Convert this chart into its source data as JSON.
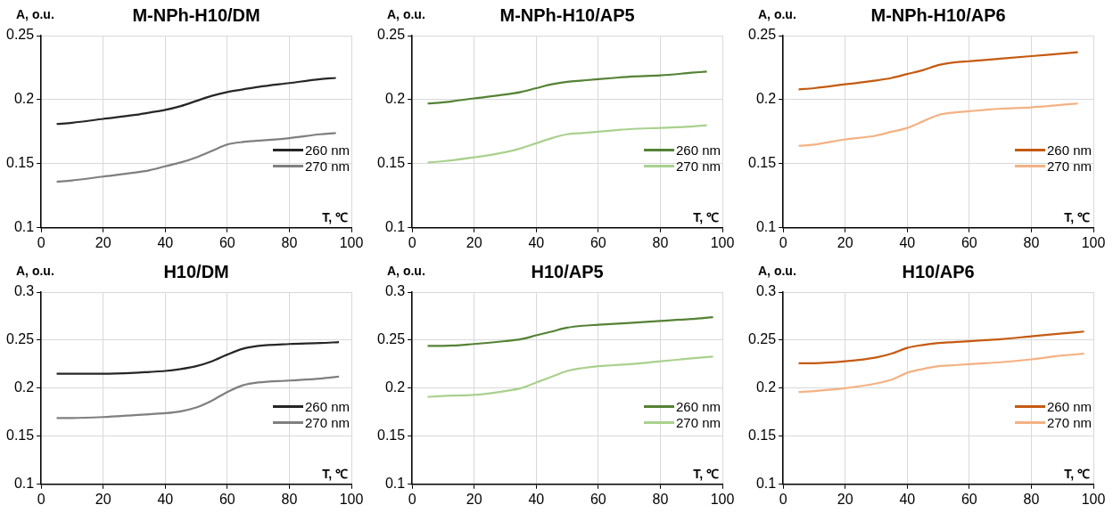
{
  "chart_data": [
    {
      "type": "line",
      "title": "M-NPh-H10/DM",
      "xlabel": "T, ℃",
      "ylabel": "A, o.u.",
      "x": [
        5,
        10,
        20,
        30,
        35,
        40,
        45,
        50,
        55,
        60,
        65,
        70,
        80,
        90,
        95
      ],
      "xlim": [
        0,
        100
      ],
      "xticks": [
        0,
        20,
        40,
        60,
        80,
        100
      ],
      "ylim": [
        0.1,
        0.25
      ],
      "yticks": [
        0.1,
        0.15,
        0.2,
        0.25
      ],
      "grid": true,
      "legend": "right",
      "marker": "none",
      "series": [
        {
          "name": "260 nm",
          "color": "#262626",
          "values": [
            0.181,
            0.182,
            0.185,
            0.188,
            0.19,
            0.192,
            0.195,
            0.199,
            0.203,
            0.206,
            0.208,
            0.21,
            0.213,
            0.216,
            0.217
          ]
        },
        {
          "name": "270 nm",
          "color": "#7f7f7f",
          "values": [
            0.136,
            0.137,
            0.14,
            0.143,
            0.145,
            0.148,
            0.151,
            0.155,
            0.16,
            0.165,
            0.167,
            0.168,
            0.17,
            0.173,
            0.174
          ]
        }
      ]
    },
    {
      "type": "line",
      "title": "M-NPh-H10/AP5",
      "xlabel": "T, ℃",
      "ylabel": "A, o.u.",
      "x": [
        5,
        10,
        20,
        30,
        35,
        40,
        45,
        50,
        55,
        60,
        65,
        70,
        80,
        90,
        95
      ],
      "xlim": [
        0,
        100
      ],
      "xticks": [
        0,
        20,
        40,
        60,
        80,
        100
      ],
      "ylim": [
        0.1,
        0.25
      ],
      "yticks": [
        0.1,
        0.15,
        0.2,
        0.25
      ],
      "grid": true,
      "legend": "right",
      "marker": "none",
      "series": [
        {
          "name": "260 nm",
          "color": "#548235",
          "values": [
            0.197,
            0.198,
            0.201,
            0.204,
            0.206,
            0.209,
            0.212,
            0.214,
            0.215,
            0.216,
            0.217,
            0.218,
            0.219,
            0.221,
            0.222
          ]
        },
        {
          "name": "270 nm",
          "color": "#a9d18e",
          "values": [
            0.151,
            0.152,
            0.155,
            0.159,
            0.162,
            0.166,
            0.17,
            0.173,
            0.174,
            0.175,
            0.176,
            0.177,
            0.178,
            0.179,
            0.18
          ]
        }
      ]
    },
    {
      "type": "line",
      "title": "M-NPh-H10/AP6",
      "xlabel": "T, ℃",
      "ylabel": "A, o.u.",
      "x": [
        5,
        10,
        20,
        30,
        35,
        40,
        45,
        50,
        55,
        60,
        65,
        70,
        80,
        90,
        95
      ],
      "xlim": [
        0,
        100
      ],
      "xticks": [
        0,
        20,
        40,
        60,
        80,
        100
      ],
      "ylim": [
        0.1,
        0.25
      ],
      "yticks": [
        0.1,
        0.15,
        0.2,
        0.25
      ],
      "grid": true,
      "legend": "right",
      "marker": "none",
      "series": [
        {
          "name": "260 nm",
          "color": "#c55a11",
          "values": [
            0.208,
            0.209,
            0.212,
            0.215,
            0.217,
            0.22,
            0.223,
            0.227,
            0.229,
            0.23,
            0.231,
            0.232,
            0.234,
            0.236,
            0.237
          ]
        },
        {
          "name": "270 nm",
          "color": "#f4b183",
          "values": [
            0.164,
            0.165,
            0.169,
            0.172,
            0.175,
            0.178,
            0.183,
            0.188,
            0.19,
            0.191,
            0.192,
            0.193,
            0.194,
            0.196,
            0.197
          ]
        }
      ]
    },
    {
      "type": "line",
      "title": "H10/DM",
      "xlabel": "T, ℃",
      "ylabel": "A, o.u.",
      "x": [
        5,
        10,
        20,
        30,
        35,
        40,
        45,
        50,
        55,
        60,
        65,
        70,
        80,
        90,
        96
      ],
      "xlim": [
        0,
        100
      ],
      "xticks": [
        0,
        20,
        40,
        60,
        80,
        100
      ],
      "ylim": [
        0.1,
        0.3
      ],
      "yticks": [
        0.1,
        0.15,
        0.2,
        0.25,
        0.3
      ],
      "grid": true,
      "legend": "right",
      "marker": "none",
      "series": [
        {
          "name": "260 nm",
          "color": "#262626",
          "values": [
            0.215,
            0.215,
            0.215,
            0.216,
            0.217,
            0.218,
            0.22,
            0.223,
            0.228,
            0.235,
            0.241,
            0.244,
            0.246,
            0.247,
            0.248
          ]
        },
        {
          "name": "270 nm",
          "color": "#7f7f7f",
          "values": [
            0.169,
            0.169,
            0.17,
            0.172,
            0.173,
            0.174,
            0.176,
            0.18,
            0.187,
            0.196,
            0.203,
            0.206,
            0.208,
            0.21,
            0.212
          ]
        }
      ]
    },
    {
      "type": "line",
      "title": "H10/AP5",
      "xlabel": "T, ℃",
      "ylabel": "A, o.u.",
      "x": [
        5,
        10,
        20,
        30,
        35,
        40,
        45,
        50,
        55,
        60,
        65,
        70,
        80,
        90,
        97
      ],
      "xlim": [
        0,
        100
      ],
      "xticks": [
        0,
        20,
        40,
        60,
        80,
        100
      ],
      "ylim": [
        0.1,
        0.3
      ],
      "yticks": [
        0.1,
        0.15,
        0.2,
        0.25,
        0.3
      ],
      "grid": true,
      "legend": "right",
      "marker": "none",
      "series": [
        {
          "name": "260 nm",
          "color": "#548235",
          "values": [
            0.244,
            0.244,
            0.246,
            0.249,
            0.251,
            0.255,
            0.259,
            0.263,
            0.265,
            0.266,
            0.267,
            0.268,
            0.27,
            0.272,
            0.274
          ]
        },
        {
          "name": "270 nm",
          "color": "#a9d18e",
          "values": [
            0.191,
            0.192,
            0.193,
            0.197,
            0.2,
            0.206,
            0.212,
            0.218,
            0.221,
            0.223,
            0.224,
            0.225,
            0.228,
            0.231,
            0.233
          ]
        }
      ]
    },
    {
      "type": "line",
      "title": "H10/AP6",
      "xlabel": "T, ℃",
      "ylabel": "A, o.u.",
      "x": [
        5,
        10,
        20,
        30,
        35,
        40,
        45,
        50,
        55,
        60,
        65,
        70,
        80,
        90,
        97
      ],
      "xlim": [
        0,
        100
      ],
      "xticks": [
        0,
        20,
        40,
        60,
        80,
        100
      ],
      "ylim": [
        0.1,
        0.3
      ],
      "yticks": [
        0.1,
        0.15,
        0.2,
        0.25,
        0.3
      ],
      "grid": true,
      "legend": "right",
      "marker": "none",
      "series": [
        {
          "name": "260 nm",
          "color": "#c55a11",
          "values": [
            0.226,
            0.226,
            0.228,
            0.232,
            0.236,
            0.242,
            0.245,
            0.247,
            0.248,
            0.249,
            0.25,
            0.251,
            0.254,
            0.257,
            0.259
          ]
        },
        {
          "name": "270 nm",
          "color": "#f4b183",
          "values": [
            0.196,
            0.197,
            0.2,
            0.205,
            0.209,
            0.216,
            0.22,
            0.223,
            0.224,
            0.225,
            0.226,
            0.227,
            0.23,
            0.234,
            0.236
          ]
        }
      ]
    }
  ]
}
